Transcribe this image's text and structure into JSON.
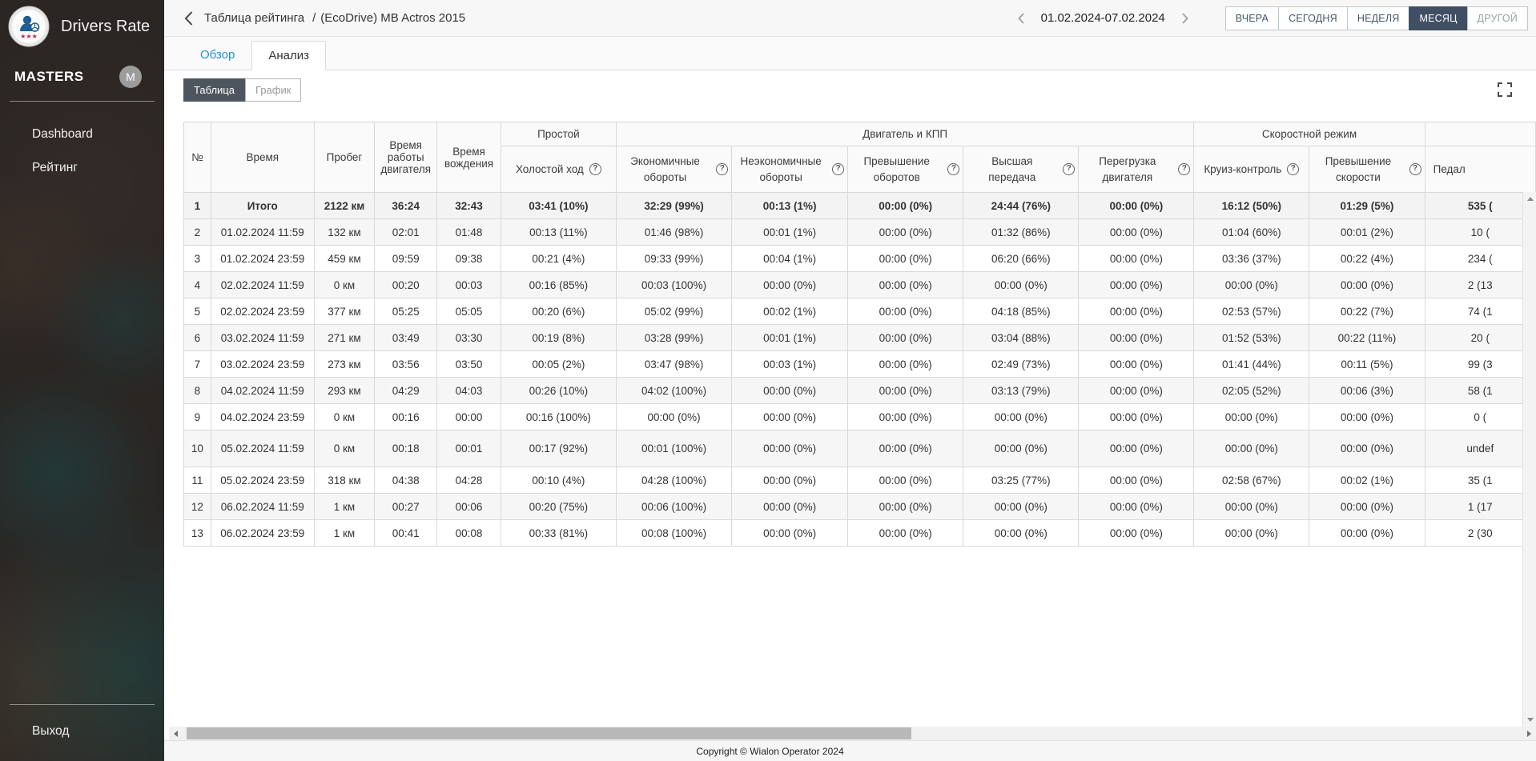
{
  "sidebar": {
    "brand": "Drivers Rate",
    "account": {
      "name": "MASTERS",
      "avatar_initial": "M"
    },
    "items": [
      {
        "label": "Dashboard"
      },
      {
        "label": "Рейтинг"
      }
    ],
    "logout_label": "Выход"
  },
  "topbar": {
    "breadcrumb": {
      "title": "Таблица рейтинга",
      "separator": "/",
      "subtitle": "(EcoDrive) MB Actros 2015"
    },
    "date_range": "01.02.2024-07.02.2024",
    "range_buttons": [
      {
        "label": "ВЧЕРА",
        "active": false
      },
      {
        "label": "СЕГОДНЯ",
        "active": false
      },
      {
        "label": "НЕДЕЛЯ",
        "active": false
      },
      {
        "label": "МЕСЯЦ",
        "active": true
      },
      {
        "label": "ДРУГОЙ",
        "active": false
      }
    ]
  },
  "tabs": [
    {
      "label": "Обзор",
      "active": false
    },
    {
      "label": "Анализ",
      "active": true
    }
  ],
  "view_toggle": [
    {
      "label": "Таблица",
      "active": true
    },
    {
      "label": "График",
      "active": false
    }
  ],
  "icons": {
    "back": "chevron-left",
    "prev": "chevron-left",
    "next": "chevron-right",
    "help": "question-circle",
    "fullscreen": "expand-corners"
  },
  "colors": {
    "accent": "#404f63",
    "link_blue": "#2291d0",
    "toggle_active": "#4d565f",
    "sidebar_bg": "#302b29"
  },
  "table": {
    "fixed_columns": [
      "№",
      "Время",
      "Пробег",
      "Время работы двигателя",
      "Время вождения"
    ],
    "groups": [
      {
        "label": "Простой",
        "columns": [
          {
            "label": "Холостой ход",
            "help": true
          }
        ]
      },
      {
        "label": "Двигатель и КПП",
        "columns": [
          {
            "label": "Экономичные обороты",
            "help": true
          },
          {
            "label": "Неэкономичные обороты",
            "help": true
          },
          {
            "label": "Превышение оборотов",
            "help": true
          },
          {
            "label": "Высшая передача",
            "help": true
          },
          {
            "label": "Перегрузка двигателя",
            "help": true
          }
        ]
      },
      {
        "label": "Скоростной режим",
        "columns": [
          {
            "label": "Круиз-контроль",
            "help": true
          },
          {
            "label": "Превышение скорости",
            "help": true
          }
        ]
      },
      {
        "label": "",
        "columns": [
          {
            "label": "Педал",
            "help": false,
            "align": "left"
          }
        ]
      }
    ],
    "rows": [
      {
        "total": true,
        "cells": [
          "1",
          "Итого",
          "2122 км",
          "36:24",
          "32:43",
          "03:41 (10%)",
          "32:29 (99%)",
          "00:13 (1%)",
          "00:00 (0%)",
          "24:44 (76%)",
          "00:00 (0%)",
          "16:12 (50%)",
          "01:29 (5%)",
          "535 ("
        ]
      },
      {
        "cells": [
          "2",
          "01.02.2024 11:59",
          "132 км",
          "02:01",
          "01:48",
          "00:13 (11%)",
          "01:46 (98%)",
          "00:01 (1%)",
          "00:00 (0%)",
          "01:32 (86%)",
          "00:00 (0%)",
          "01:04 (60%)",
          "00:01 (2%)",
          "10 ("
        ]
      },
      {
        "cells": [
          "3",
          "01.02.2024 23:59",
          "459 км",
          "09:59",
          "09:38",
          "00:21 (4%)",
          "09:33 (99%)",
          "00:04 (1%)",
          "00:00 (0%)",
          "06:20 (66%)",
          "00:00 (0%)",
          "03:36 (37%)",
          "00:22 (4%)",
          "234 ("
        ]
      },
      {
        "cells": [
          "4",
          "02.02.2024 11:59",
          "0 км",
          "00:20",
          "00:03",
          "00:16 (85%)",
          "00:03 (100%)",
          "00:00 (0%)",
          "00:00 (0%)",
          "00:00 (0%)",
          "00:00 (0%)",
          "00:00 (0%)",
          "00:00 (0%)",
          "2 (13"
        ]
      },
      {
        "cells": [
          "5",
          "02.02.2024 23:59",
          "377 км",
          "05:25",
          "05:05",
          "00:20 (6%)",
          "05:02 (99%)",
          "00:02 (1%)",
          "00:00 (0%)",
          "04:18 (85%)",
          "00:00 (0%)",
          "02:53 (57%)",
          "00:22 (7%)",
          "74 (1"
        ]
      },
      {
        "cells": [
          "6",
          "03.02.2024 11:59",
          "271 км",
          "03:49",
          "03:30",
          "00:19 (8%)",
          "03:28 (99%)",
          "00:01 (1%)",
          "00:00 (0%)",
          "03:04 (88%)",
          "00:00 (0%)",
          "01:52 (53%)",
          "00:22 (11%)",
          "20 ("
        ]
      },
      {
        "cells": [
          "7",
          "03.02.2024 23:59",
          "273 км",
          "03:56",
          "03:50",
          "00:05 (2%)",
          "03:47 (98%)",
          "00:03 (1%)",
          "00:00 (0%)",
          "02:49 (73%)",
          "00:00 (0%)",
          "01:41 (44%)",
          "00:11 (5%)",
          "99 (3"
        ]
      },
      {
        "cells": [
          "8",
          "04.02.2024 11:59",
          "293 км",
          "04:29",
          "04:03",
          "00:26 (10%)",
          "04:02 (100%)",
          "00:00 (0%)",
          "00:00 (0%)",
          "03:13 (79%)",
          "00:00 (0%)",
          "02:05 (52%)",
          "00:06 (3%)",
          "58 (1"
        ]
      },
      {
        "cells": [
          "9",
          "04.02.2024 23:59",
          "0 км",
          "00:16",
          "00:00",
          "00:16 (100%)",
          "00:00 (0%)",
          "00:00 (0%)",
          "00:00 (0%)",
          "00:00 (0%)",
          "00:00 (0%)",
          "00:00 (0%)",
          "00:00 (0%)",
          "0 ("
        ]
      },
      {
        "tall": true,
        "cells": [
          "10",
          "05.02.2024 11:59",
          "0 км",
          "00:18",
          "00:01",
          "00:17 (92%)",
          "00:01 (100%)",
          "00:00 (0%)",
          "00:00 (0%)",
          "00:00 (0%)",
          "00:00 (0%)",
          "00:00 (0%)",
          "00:00 (0%)",
          "undef"
        ]
      },
      {
        "cells": [
          "11",
          "05.02.2024 23:59",
          "318 км",
          "04:38",
          "04:28",
          "00:10 (4%)",
          "04:28 (100%)",
          "00:00 (0%)",
          "00:00 (0%)",
          "03:25 (77%)",
          "00:00 (0%)",
          "02:58 (67%)",
          "00:02 (1%)",
          "35 (1"
        ]
      },
      {
        "cells": [
          "12",
          "06.02.2024 11:59",
          "1 км",
          "00:27",
          "00:06",
          "00:20 (75%)",
          "00:06 (100%)",
          "00:00 (0%)",
          "00:00 (0%)",
          "00:00 (0%)",
          "00:00 (0%)",
          "00:00 (0%)",
          "00:00 (0%)",
          "1 (17"
        ]
      },
      {
        "cells": [
          "13",
          "06.02.2024 23:59",
          "1 км",
          "00:41",
          "00:08",
          "00:33 (81%)",
          "00:08 (100%)",
          "00:00 (0%)",
          "00:00 (0%)",
          "00:00 (0%)",
          "00:00 (0%)",
          "00:00 (0%)",
          "00:00 (0%)",
          "2 (30"
        ]
      }
    ]
  },
  "footer": {
    "copyright": "Copyright © Wialon Operator 2024"
  }
}
